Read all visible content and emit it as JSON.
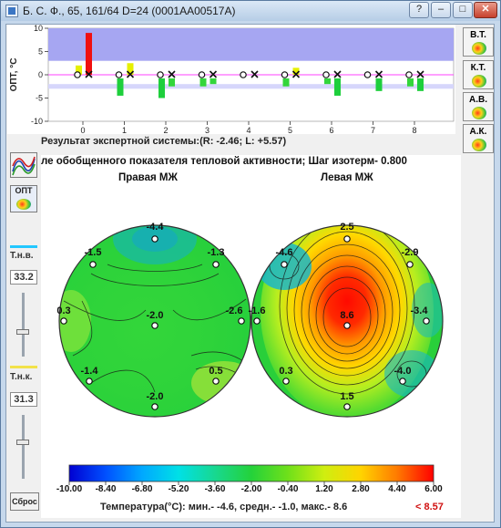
{
  "window": {
    "title": "Б. С. Ф., 65, 161/64 D=24 (0001AA00517A)",
    "buttons": {
      "help": "?",
      "minimize": "–",
      "maximize": "□",
      "close": "✕"
    }
  },
  "top_chart": {
    "ylabel": "ОПТ, °С",
    "y_ticks": [
      "10",
      "5",
      "0",
      "-5",
      "-10"
    ],
    "x_ticks": [
      "0",
      "1",
      "2",
      "3",
      "4",
      "5",
      "6",
      "7",
      "8"
    ],
    "bars": [
      {
        "right": 2.0,
        "left": 9.0
      },
      {
        "right": -4.5,
        "left": 2.5
      },
      {
        "right": -5.0,
        "left": -2.5
      },
      {
        "right": -2.5,
        "left": -2.0
      },
      {
        "right": -0.5,
        "left": -0.5
      },
      {
        "right": -2.5,
        "left": 1.5
      },
      {
        "right": -2.0,
        "left": -4.5
      },
      {
        "right": -0.5,
        "left": -3.5
      },
      {
        "right": -2.5,
        "left": -3.5
      }
    ],
    "result_text": "Результат экспертной системы:(R: -2.46; L: +5.57)"
  },
  "side_buttons": [
    "В.Т.",
    "К.Т.",
    "А.В.",
    "А.К."
  ],
  "left_panel": {
    "opt_button": "ОПТ",
    "tnv_label": "Т.н.в.",
    "tnv_value": "33.2",
    "tnk_label": "Т.н.к.",
    "tnk_value": "31.3",
    "reset_button": "Сброс"
  },
  "main": {
    "heading": "ле обобщенного показателя тепловой активности;     Шаг изотерм- 0.800",
    "right_title": "Правая МЖ",
    "left_title": "Левая МЖ",
    "right_points": [
      "-4.4",
      "-1.5",
      "-1.3",
      "0.3",
      "-2.0",
      "-2.6",
      "-1.4",
      "0.5",
      "-2.0"
    ],
    "left_points": [
      "2.5",
      "-4.6",
      "-2.9",
      "-1.6",
      "8.6",
      "-3.4",
      "0.3",
      "-4.0",
      "1.5"
    ],
    "colorbar_labels": [
      "-10.00",
      "-8.40",
      "-6.80",
      "-5.20",
      "-3.60",
      "-2.00",
      "-0.40",
      "1.20",
      "2.80",
      "4.40",
      "6.00"
    ],
    "temp_text": "Температура(°С): мин.-   -4.6,  средн.-   -1.0,  макс.-  8.6",
    "max_marker": "< 8.57"
  },
  "colors": {
    "band": "#a6a6f2",
    "hot": "#ff1a00",
    "cold": "#0000c8"
  }
}
